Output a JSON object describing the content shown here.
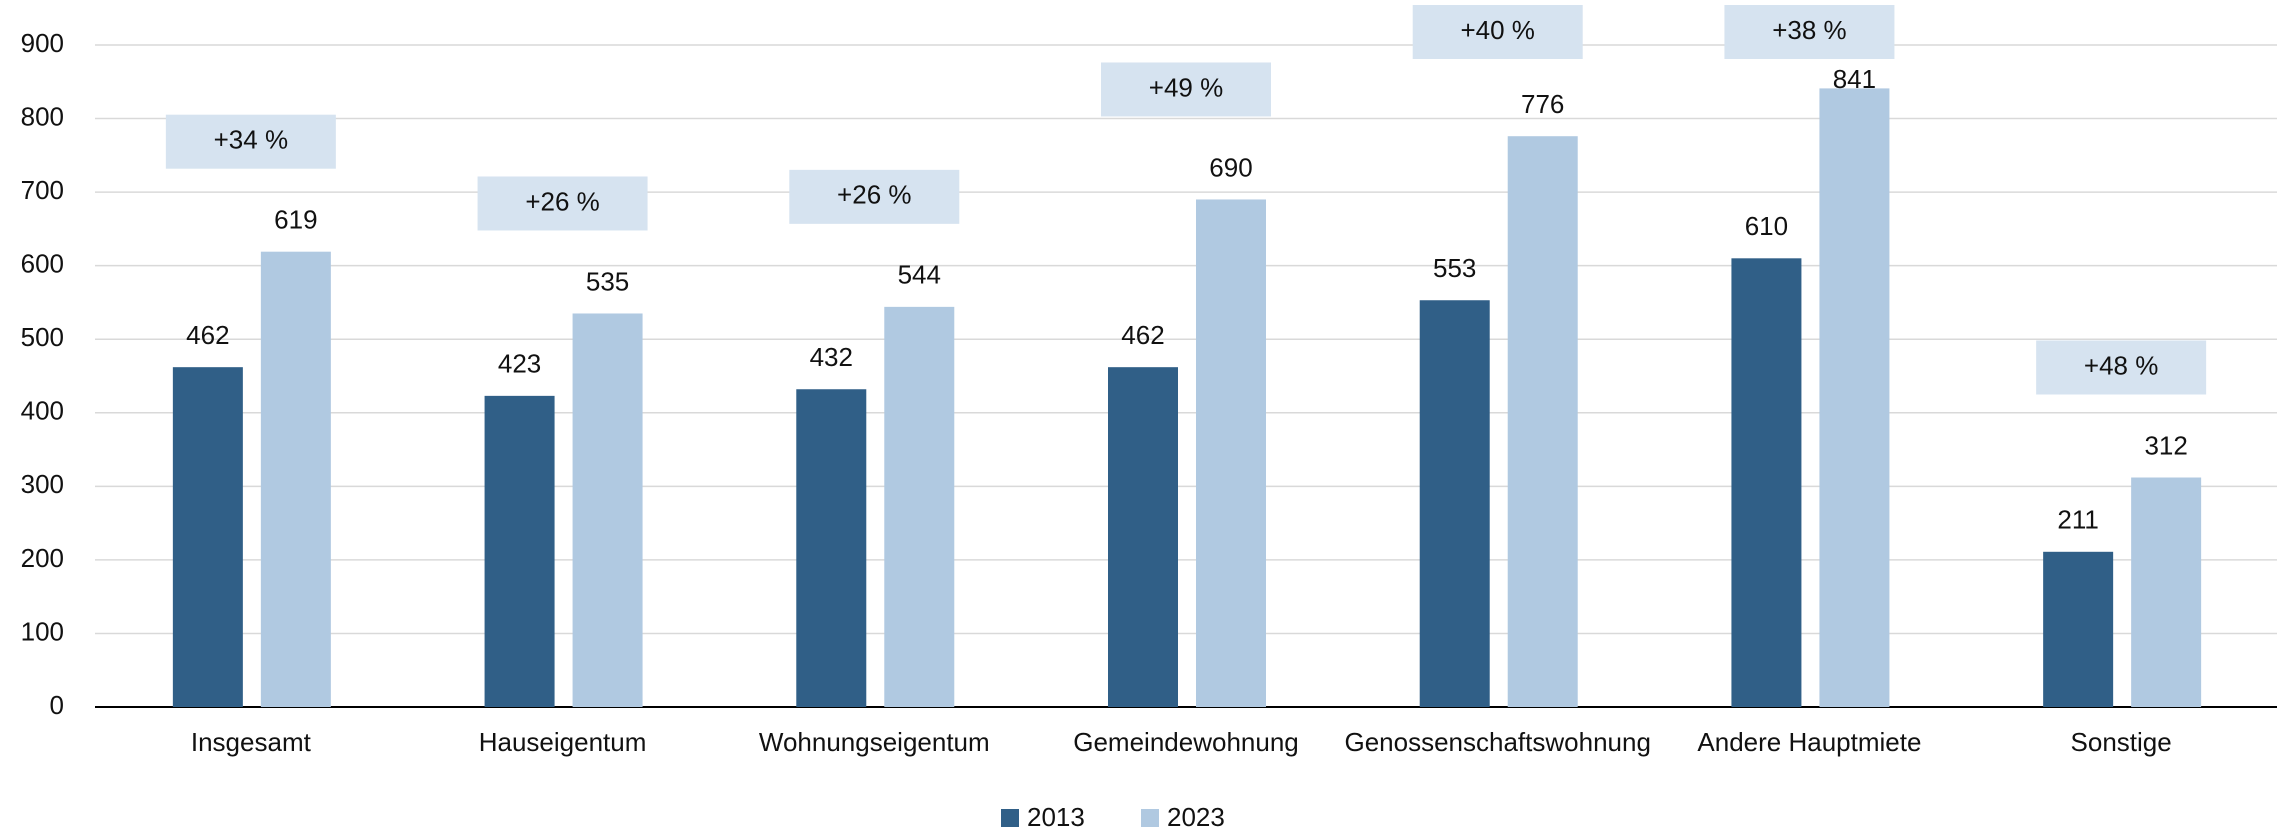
{
  "chart_data": {
    "type": "bar",
    "categories": [
      "Insgesamt",
      "Hauseigentum",
      "Wohnungseigentum",
      "Gemeindewohnung",
      "Genossenschaftswohnung",
      "Andere Hauptmiete",
      "Sonstige"
    ],
    "series": [
      {
        "name": "2013",
        "color": "#305f87",
        "values": [
          462,
          423,
          432,
          462,
          553,
          610,
          211
        ]
      },
      {
        "name": "2023",
        "color": "#b0c9e1",
        "values": [
          619,
          535,
          544,
          690,
          776,
          841,
          312
        ]
      }
    ],
    "annotations": [
      "+34 %",
      "+26 %",
      "+26 %",
      "+49 %",
      "+40 %",
      "+38 %",
      "+48 %"
    ],
    "annotation_color": "#d6e3f0",
    "ylim": [
      0,
      900
    ],
    "yticks": [
      0,
      100,
      200,
      300,
      400,
      500,
      600,
      700,
      800,
      900
    ],
    "grid": true,
    "legend": "bottom"
  }
}
